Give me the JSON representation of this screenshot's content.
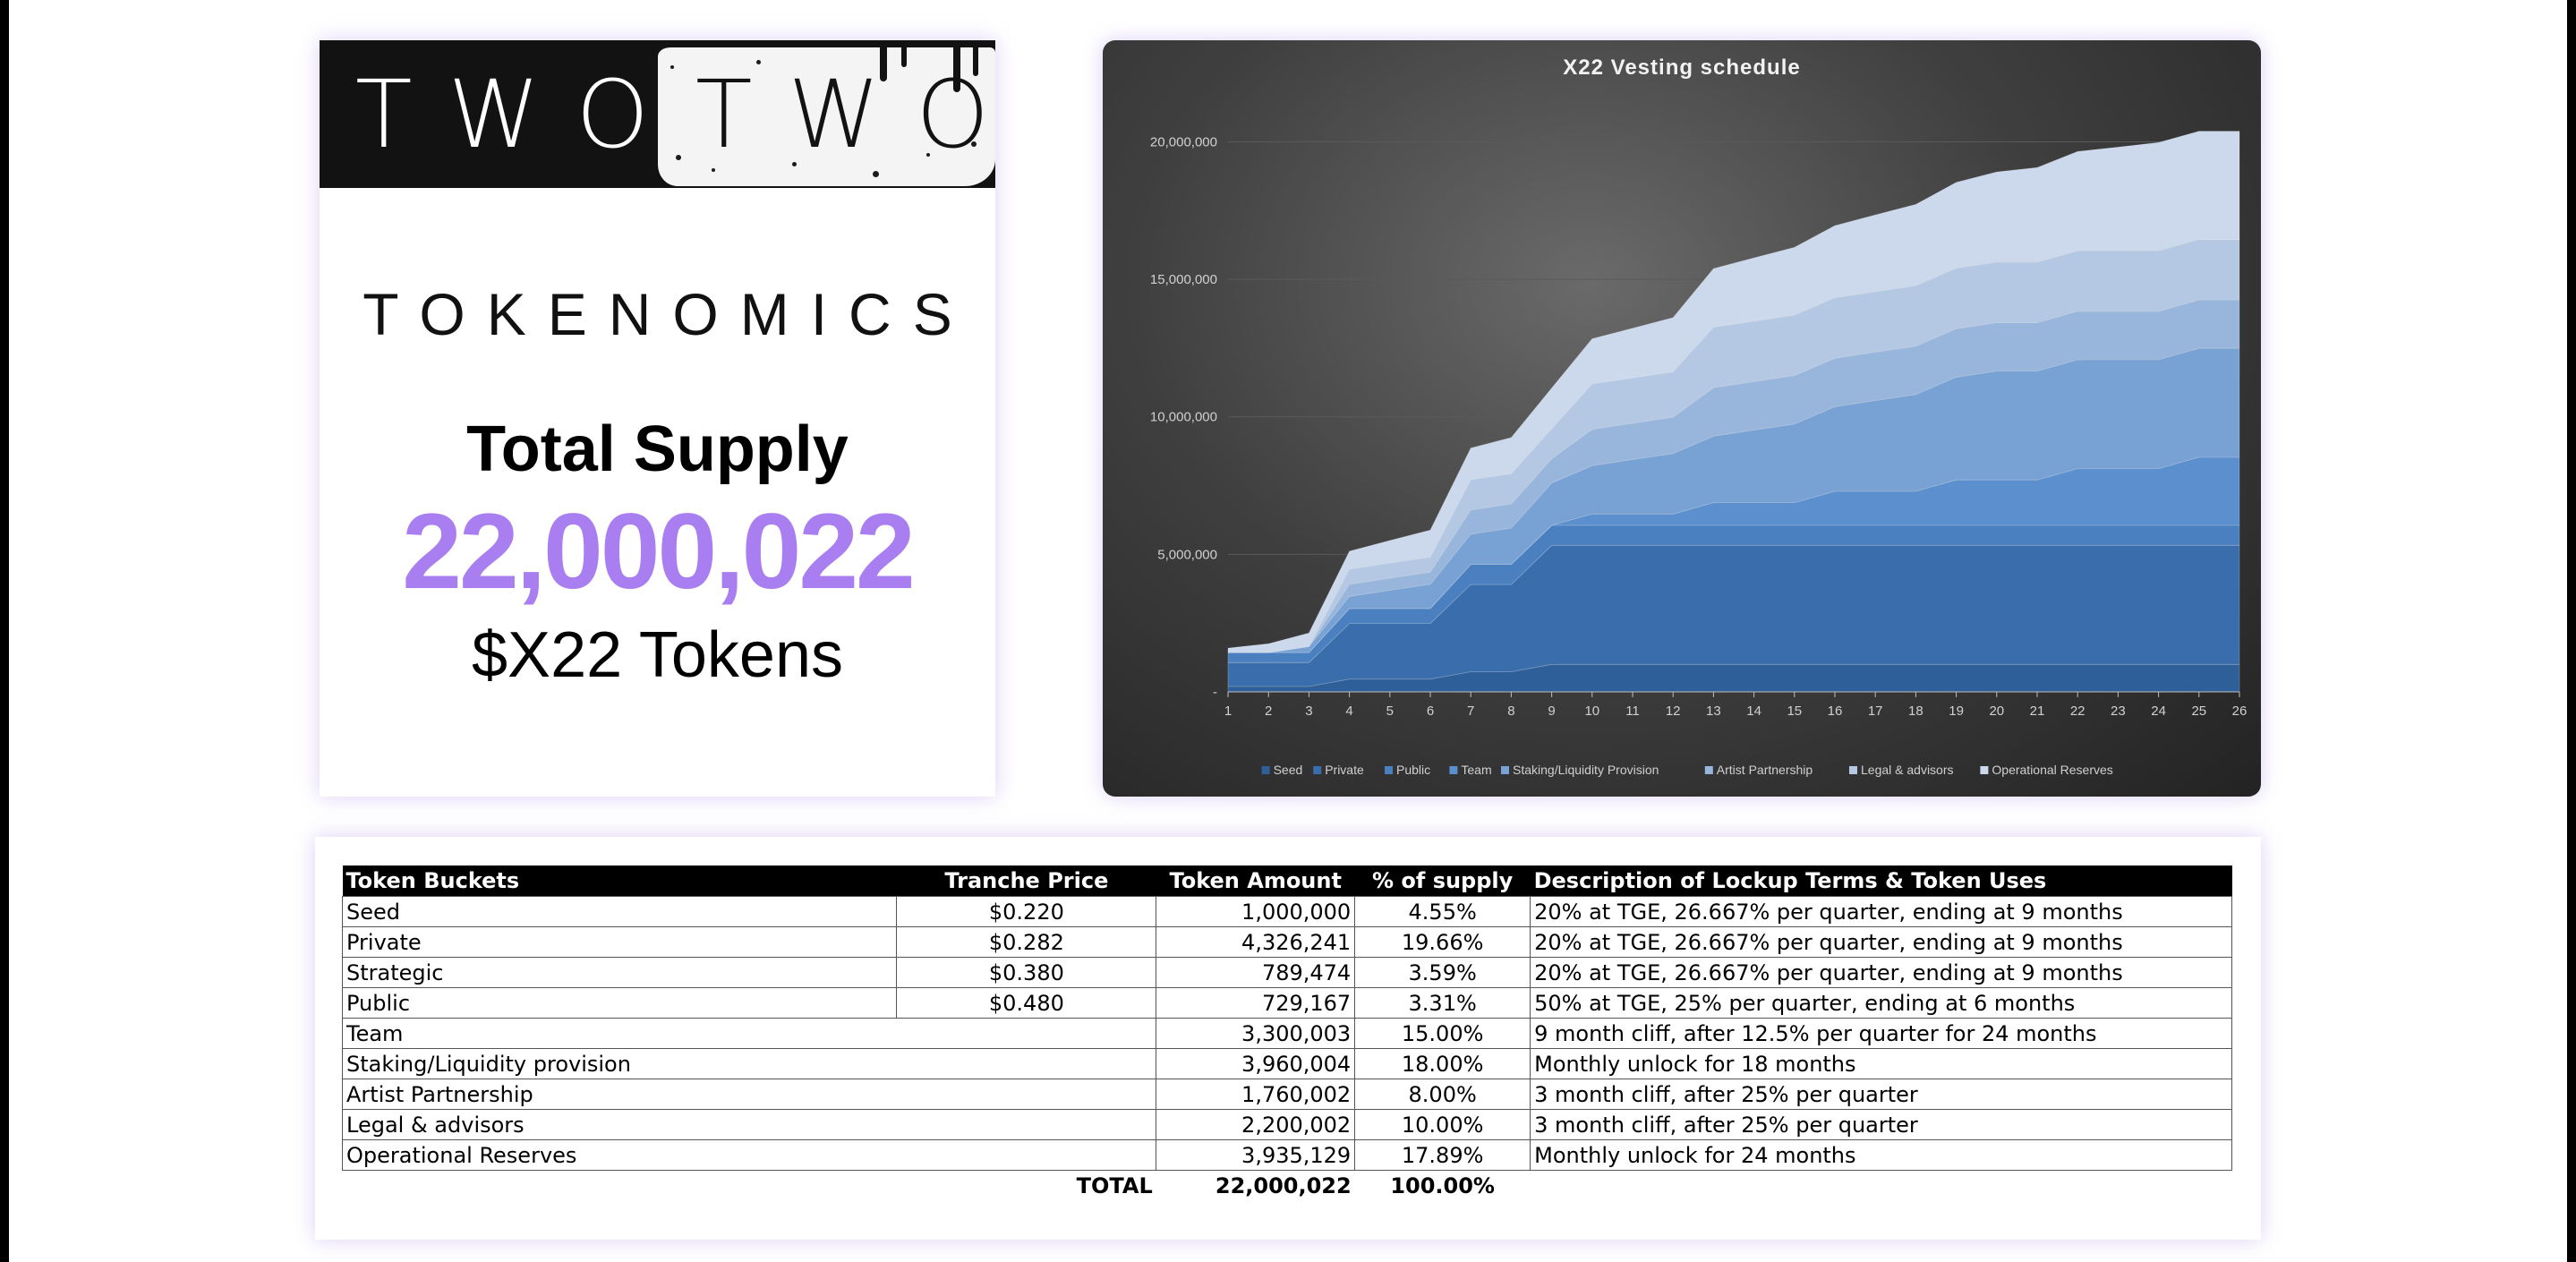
{
  "logo": {
    "word_left": "TWO",
    "word_right": "TWO"
  },
  "heading": "TOKENOMICS",
  "supply": {
    "label": "Total Supply",
    "value": "22,000,022",
    "unit": "$X22 Tokens"
  },
  "colors": {
    "accent": "#a97ef0",
    "banner": "#121212",
    "chart_bg": "#3f3f3f"
  },
  "chart_data": {
    "type": "area",
    "stacked": true,
    "title": "X22 Vesting schedule",
    "xlabel": "",
    "ylabel": "",
    "ylim": [
      0,
      22000000
    ],
    "yticks": [
      "-",
      "5,000,000",
      "10,000,000",
      "15,000,000",
      "20,000,000"
    ],
    "x": [
      1,
      2,
      3,
      4,
      5,
      6,
      7,
      8,
      9,
      10,
      11,
      12,
      13,
      14,
      15,
      16,
      17,
      18,
      19,
      20,
      21,
      22,
      23,
      24,
      25,
      26
    ],
    "legend_position": "bottom",
    "grid": true,
    "series": [
      {
        "name": "Seed",
        "color": "#2f5f99",
        "values": [
          200000,
          200000,
          200000,
          466670,
          466670,
          466670,
          733340,
          733340,
          1000000,
          1000000,
          1000000,
          1000000,
          1000000,
          1000000,
          1000000,
          1000000,
          1000000,
          1000000,
          1000000,
          1000000,
          1000000,
          1000000,
          1000000,
          1000000,
          1000000,
          1000000
        ]
      },
      {
        "name": "Private",
        "color": "#3a6dab",
        "values": [
          865248,
          865248,
          865248,
          2018911,
          2018911,
          2018911,
          3172574,
          3172574,
          4326241,
          4326241,
          4326241,
          4326241,
          4326241,
          4326241,
          4326241,
          4326241,
          4326241,
          4326241,
          4326241,
          4326241,
          4326241,
          4326241,
          4326241,
          4326241,
          4326241,
          4326241
        ]
      },
      {
        "name": "Public",
        "color": "#4a80c0",
        "values": [
          364584,
          364584,
          364584,
          546876,
          546876,
          546876,
          729167,
          729167,
          729167,
          729167,
          729167,
          729167,
          729167,
          729167,
          729167,
          729167,
          729167,
          729167,
          729167,
          729167,
          729167,
          729167,
          729167,
          729167,
          729167,
          729167
        ]
      },
      {
        "name": "Team",
        "color": "#5b8fcd",
        "values": [
          0,
          0,
          0,
          0,
          0,
          0,
          0,
          0,
          0,
          412500,
          412500,
          412500,
          825000,
          825000,
          825000,
          1237500,
          1237500,
          1237500,
          1650000,
          1650000,
          1650000,
          2062500,
          2062500,
          2062500,
          2475000,
          2475000
        ]
      },
      {
        "name": "Staking/Liquidity Provision",
        "color": "#79a2d4",
        "values": [
          0,
          0,
          220000,
          440000,
          660000,
          880000,
          1100000,
          1320000,
          1540000,
          1760000,
          1980000,
          2200000,
          2420000,
          2640000,
          2860000,
          3080000,
          3300000,
          3520000,
          3740000,
          3960000,
          3960000,
          3960000,
          3960000,
          3960000,
          3960000,
          3960000
        ]
      },
      {
        "name": "Artist Partnership",
        "color": "#98b5db",
        "values": [
          0,
          0,
          0,
          440000,
          440000,
          440000,
          880000,
          880000,
          880000,
          1320000,
          1320000,
          1320000,
          1760000,
          1760000,
          1760000,
          1760000,
          1760000,
          1760000,
          1760000,
          1760000,
          1760000,
          1760000,
          1760000,
          1760000,
          1760000,
          1760000
        ]
      },
      {
        "name": "Legal & advisors",
        "color": "#b4c8e3",
        "values": [
          0,
          0,
          0,
          550000,
          550000,
          550000,
          1100000,
          1100000,
          1100000,
          1650000,
          1650000,
          1650000,
          2200000,
          2200000,
          2200000,
          2200000,
          2200000,
          2200000,
          2200000,
          2200000,
          2200000,
          2200000,
          2200000,
          2200000,
          2200000,
          2200000
        ]
      },
      {
        "name": "Operational Reserves",
        "color": "#ccd9ec",
        "values": [
          160000,
          320000,
          490000,
          650000,
          820000,
          980000,
          1150000,
          1310000,
          1470000,
          1640000,
          1800000,
          1970000,
          2130000,
          2300000,
          2460000,
          2620000,
          2790000,
          2950000,
          3120000,
          3280000,
          3440000,
          3610000,
          3770000,
          3935129,
          3935129,
          3935129
        ]
      }
    ]
  },
  "table": {
    "headers": [
      "Token Buckets",
      "Tranche Price",
      "Token Amount",
      "% of supply",
      "Description of Lockup Terms & Token Uses"
    ],
    "rows": [
      {
        "bucket": "Seed",
        "price": "$0.220",
        "amount": "1,000,000",
        "pct": "4.55%",
        "desc": "20% at TGE, 26.667% per quarter, ending at 9 months"
      },
      {
        "bucket": "Private",
        "price": "$0.282",
        "amount": "4,326,241",
        "pct": "19.66%",
        "desc": "20% at TGE, 26.667% per quarter, ending at 9 months"
      },
      {
        "bucket": "Strategic",
        "price": "$0.380",
        "amount": "789,474",
        "pct": "3.59%",
        "desc": "20% at TGE, 26.667% per quarter, ending at 9 months"
      },
      {
        "bucket": "Public",
        "price": "$0.480",
        "amount": "729,167",
        "pct": "3.31%",
        "desc": "50% at TGE, 25% per quarter, ending at 6 months"
      },
      {
        "bucket": "Team",
        "price": "",
        "amount": "3,300,003",
        "pct": "15.00%",
        "desc": "9 month cliff, after 12.5% per quarter for 24 months"
      },
      {
        "bucket": "Staking/Liquidity provision",
        "price": "",
        "amount": "3,960,004",
        "pct": "18.00%",
        "desc": "Monthly unlock for 18 months"
      },
      {
        "bucket": "Artist Partnership",
        "price": "",
        "amount": "1,760,002",
        "pct": "8.00%",
        "desc": "3 month cliff, after 25% per quarter"
      },
      {
        "bucket": "Legal & advisors",
        "price": "",
        "amount": "2,200,002",
        "pct": "10.00%",
        "desc": "3 month cliff, after 25% per quarter"
      },
      {
        "bucket": "Operational Reserves",
        "price": "",
        "amount": "3,935,129",
        "pct": "17.89%",
        "desc": "Monthly unlock for 24 months"
      }
    ],
    "total": {
      "label": "TOTAL",
      "amount": "22,000,022",
      "pct": "100.00%"
    }
  }
}
